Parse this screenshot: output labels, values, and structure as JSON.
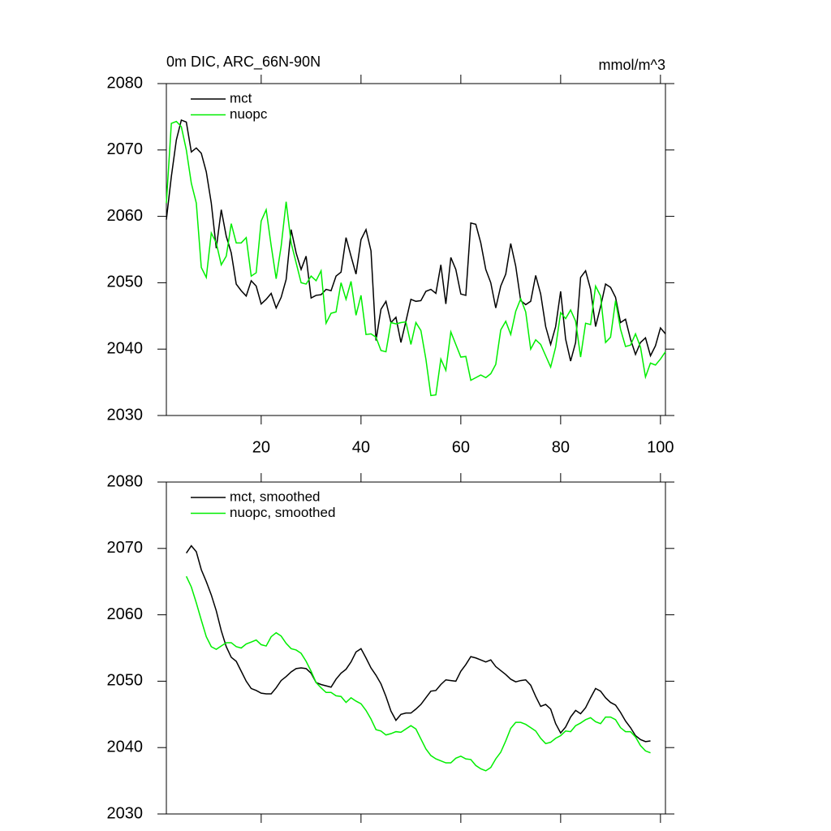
{
  "chart_data": [
    {
      "type": "line",
      "title": "0m DIC, ARC_66N-90N",
      "units": "mmol/m^3",
      "x": [
        1,
        2,
        3,
        4,
        5,
        6,
        7,
        8,
        9,
        10,
        11,
        12,
        13,
        14,
        15,
        16,
        17,
        18,
        19,
        20,
        21,
        22,
        23,
        24,
        25,
        26,
        27,
        28,
        29,
        30,
        31,
        32,
        33,
        34,
        35,
        36,
        37,
        38,
        39,
        40,
        41,
        42,
        43,
        44,
        45,
        46,
        47,
        48,
        49,
        50,
        51,
        52,
        53,
        54,
        55,
        56,
        57,
        58,
        59,
        60,
        61,
        62,
        63,
        64,
        65,
        66,
        67,
        68,
        69,
        70,
        71,
        72,
        73,
        74,
        75,
        76,
        77,
        78,
        79,
        80,
        81,
        82,
        83,
        84,
        85,
        86,
        87,
        88,
        89,
        90,
        91,
        92,
        93,
        94,
        95,
        96,
        97,
        98,
        99,
        100,
        101
      ],
      "series": [
        {
          "name": "mct",
          "color": "#000000",
          "values": [
            2059.5,
            2066,
            2071.5,
            2074.5,
            2074.2,
            2069.7,
            2070.3,
            2069.5,
            2066.7,
            2062,
            2055.2,
            2061,
            2057,
            2054.5,
            2049.8,
            2048.8,
            2048,
            2050.3,
            2049.5,
            2046.8,
            2047.5,
            2048.4,
            2046.2,
            2047.8,
            2050.5,
            2058,
            2054.5,
            2052,
            2054,
            2047.7,
            2048.1,
            2048.2,
            2049,
            2048.8,
            2051,
            2051.6,
            2056.8,
            2054,
            2051.3,
            2056.5,
            2058,
            2054.8,
            2041.3,
            2046,
            2047.2,
            2044,
            2044.8,
            2041,
            2044.2,
            2047.5,
            2047.2,
            2047.3,
            2048.7,
            2049,
            2048.4,
            2052.7,
            2046.8,
            2053.8,
            2052,
            2048.3,
            2048.1,
            2059,
            2058.8,
            2056,
            2052,
            2050,
            2046.2,
            2049.5,
            2051.3,
            2055.9,
            2052.5,
            2047.3,
            2046.7,
            2047.2,
            2051.1,
            2048.3,
            2043.4,
            2040.7,
            2043.4,
            2048.7,
            2041.5,
            2038.2,
            2041,
            2050.8,
            2051.8,
            2049,
            2043.4,
            2046.4,
            2049.8,
            2049.3,
            2047.8,
            2044,
            2044.5,
            2041.5,
            2039.2,
            2041,
            2041.7,
            2039,
            2040.5,
            2043.2,
            2042.3
          ]
        },
        {
          "name": "nuopc",
          "color": "#00ee00",
          "values": [
            2062,
            2074,
            2074.3,
            2073.5,
            2070,
            2065,
            2062,
            2052.3,
            2050.8,
            2057.5,
            2056,
            2052.7,
            2054,
            2058.9,
            2056,
            2056,
            2056.8,
            2051,
            2051.5,
            2059.3,
            2061,
            2055.6,
            2050.6,
            2055.5,
            2062.2,
            2056,
            2053,
            2050,
            2049.8,
            2051,
            2050.3,
            2051.8,
            2043.9,
            2045.4,
            2045.6,
            2050,
            2047.5,
            2050.2,
            2045.1,
            2048.1,
            2042.2,
            2042.3,
            2041.8,
            2039.8,
            2039.6,
            2044,
            2043.8,
            2044,
            2044.1,
            2040.7,
            2044,
            2042.8,
            2038.5,
            2033,
            2033.1,
            2038.5,
            2036.8,
            2042.6,
            2040.7,
            2038.8,
            2038.9,
            2035.3,
            2035.7,
            2036.1,
            2035.7,
            2036.3,
            2037.7,
            2042.9,
            2044.2,
            2042.2,
            2045.7,
            2047.6,
            2045.6,
            2040,
            2041.4,
            2040.7,
            2039,
            2037.3,
            2040.3,
            2045.5,
            2044.6,
            2045.9,
            2044.2,
            2038.8,
            2043.9,
            2043.7,
            2049.5,
            2048,
            2041,
            2041.8,
            2047.3,
            2043,
            2040.4,
            2040.6,
            2042.3,
            2040.3,
            2035.8,
            2037.9,
            2037.6,
            2038.5,
            2039.6
          ]
        }
      ],
      "xlim": [
        1,
        101
      ],
      "xticks": [
        20,
        40,
        60,
        80,
        100
      ],
      "xtick_labels": true,
      "ylim": [
        2030,
        2080
      ],
      "yticks": [
        2030,
        2040,
        2050,
        2060,
        2070,
        2080
      ],
      "legend": "upper left"
    },
    {
      "type": "line",
      "x": [
        5,
        6,
        7,
        8,
        9,
        10,
        11,
        12,
        13,
        14,
        15,
        16,
        17,
        18,
        19,
        20,
        21,
        22,
        23,
        24,
        25,
        26,
        27,
        28,
        29,
        30,
        31,
        32,
        33,
        34,
        35,
        36,
        37,
        38,
        39,
        40,
        41,
        42,
        43,
        44,
        45,
        46,
        47,
        48,
        49,
        50,
        51,
        52,
        53,
        54,
        55,
        56,
        57,
        58,
        59,
        60,
        61,
        62,
        63,
        64,
        65,
        66,
        67,
        68,
        69,
        70,
        71,
        72,
        73,
        74,
        75,
        76,
        77,
        78,
        79,
        80,
        81,
        82,
        83,
        84,
        85,
        86,
        87,
        88,
        89,
        90,
        91,
        92,
        93,
        94,
        95,
        96,
        97,
        98
      ],
      "series": [
        {
          "name": "mct, smoothed",
          "color": "#000000",
          "values": [
            2069.3,
            2070.4,
            2069.5,
            2066.8,
            2065,
            2063,
            2060.6,
            2057.6,
            2055.2,
            2053.6,
            2053,
            2051.5,
            2050,
            2048.9,
            2048.6,
            2048.2,
            2048.1,
            2048.1,
            2049,
            2050.1,
            2050.7,
            2051.4,
            2051.9,
            2052,
            2051.9,
            2051.2,
            2049.8,
            2049.5,
            2049.3,
            2049.1,
            2050.3,
            2051.2,
            2051.8,
            2052.9,
            2054.4,
            2054.9,
            2053.5,
            2052,
            2050.9,
            2049.6,
            2047.7,
            2045.5,
            2044.1,
            2045,
            2045.2,
            2045.2,
            2045.8,
            2046.5,
            2047.5,
            2048.5,
            2048.6,
            2049.5,
            2050.2,
            2050.1,
            2050,
            2051.5,
            2052.5,
            2053.7,
            2053.5,
            2053.2,
            2052.9,
            2053.2,
            2052.2,
            2051.6,
            2051,
            2050.3,
            2049.9,
            2050.1,
            2050.2,
            2049.4,
            2047.7,
            2046.2,
            2046.5,
            2045.8,
            2043.6,
            2042.2,
            2043.1,
            2044.6,
            2045.6,
            2045.1,
            2046,
            2047.5,
            2048.9,
            2048.5,
            2047.5,
            2046.8,
            2046.4,
            2045.3,
            2044,
            2043,
            2041.8,
            2041.2,
            2040.9,
            2041
          ]
        },
        {
          "name": "nuopc, smoothed",
          "color": "#00ee00",
          "values": [
            2065.8,
            2064.2,
            2061.8,
            2059.2,
            2056.7,
            2055.2,
            2054.8,
            2055.3,
            2055.8,
            2055.8,
            2055.2,
            2055,
            2055.6,
            2055.9,
            2056.2,
            2055.5,
            2055.3,
            2056.7,
            2057.3,
            2056.8,
            2055.7,
            2054.9,
            2054.7,
            2054.2,
            2053,
            2051.5,
            2049.8,
            2049,
            2048.3,
            2048.3,
            2047.8,
            2047.7,
            2046.8,
            2047.5,
            2047,
            2046.6,
            2045.6,
            2044.3,
            2042.7,
            2042.5,
            2041.9,
            2042.1,
            2042.4,
            2042.3,
            2042.8,
            2043.3,
            2042.8,
            2041.3,
            2039.8,
            2038.8,
            2038.3,
            2038,
            2037.7,
            2037.7,
            2038.4,
            2038.7,
            2038.3,
            2038.2,
            2037.3,
            2036.8,
            2036.5,
            2037,
            2038.3,
            2039.3,
            2041,
            2042.9,
            2043.8,
            2043.8,
            2043.5,
            2043,
            2042.5,
            2041.4,
            2040.6,
            2040.8,
            2041.4,
            2041.8,
            2042.5,
            2042.4,
            2043.3,
            2043.7,
            2044.2,
            2044.5,
            2043.9,
            2043.6,
            2044.6,
            2044.6,
            2044.2,
            2043,
            2042.4,
            2042.4,
            2041.6,
            2040.3,
            2039.5,
            2039.2
          ]
        }
      ],
      "xlim": [
        1,
        101
      ],
      "xticks": [
        20,
        40,
        60,
        80,
        100
      ],
      "xtick_labels": false,
      "ylim": [
        2030,
        2080
      ],
      "yticks": [
        2030,
        2040,
        2050,
        2060,
        2070,
        2080
      ],
      "legend": "upper left"
    }
  ]
}
